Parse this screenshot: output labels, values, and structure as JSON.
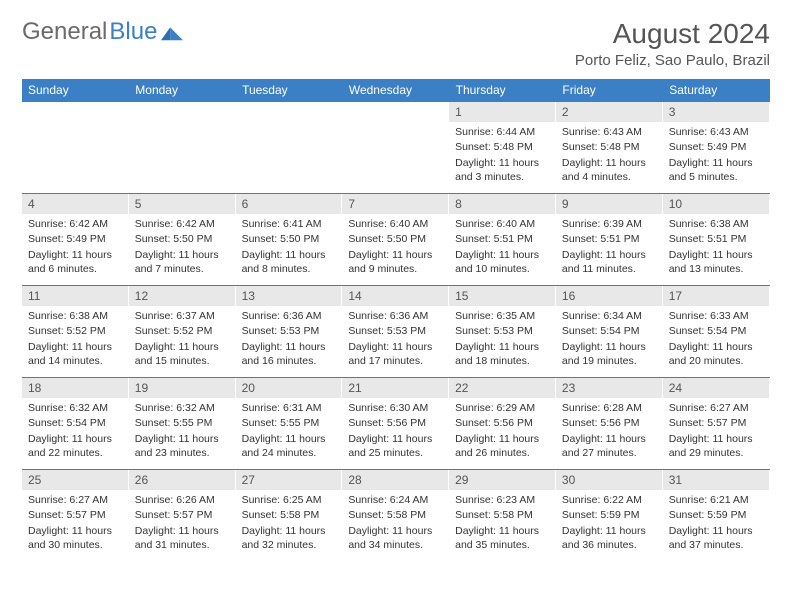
{
  "logo": {
    "text_gray": "General",
    "text_blue": "Blue"
  },
  "title": "August 2024",
  "location": "Porto Feliz, Sao Paulo, Brazil",
  "colors": {
    "header_bg": "#3b7fc4",
    "header_text": "#ffffff",
    "daynum_bg": "#e8e8e8",
    "border": "#3b7fc4",
    "body_text": "#333333",
    "logo_gray": "#6a6a6a"
  },
  "weekdays": [
    "Sunday",
    "Monday",
    "Tuesday",
    "Wednesday",
    "Thursday",
    "Friday",
    "Saturday"
  ],
  "weeks": [
    [
      null,
      null,
      null,
      null,
      {
        "n": "1",
        "sr": "6:44 AM",
        "ss": "5:48 PM",
        "dl": "11 hours and 3 minutes."
      },
      {
        "n": "2",
        "sr": "6:43 AM",
        "ss": "5:48 PM",
        "dl": "11 hours and 4 minutes."
      },
      {
        "n": "3",
        "sr": "6:43 AM",
        "ss": "5:49 PM",
        "dl": "11 hours and 5 minutes."
      }
    ],
    [
      {
        "n": "4",
        "sr": "6:42 AM",
        "ss": "5:49 PM",
        "dl": "11 hours and 6 minutes."
      },
      {
        "n": "5",
        "sr": "6:42 AM",
        "ss": "5:50 PM",
        "dl": "11 hours and 7 minutes."
      },
      {
        "n": "6",
        "sr": "6:41 AM",
        "ss": "5:50 PM",
        "dl": "11 hours and 8 minutes."
      },
      {
        "n": "7",
        "sr": "6:40 AM",
        "ss": "5:50 PM",
        "dl": "11 hours and 9 minutes."
      },
      {
        "n": "8",
        "sr": "6:40 AM",
        "ss": "5:51 PM",
        "dl": "11 hours and 10 minutes."
      },
      {
        "n": "9",
        "sr": "6:39 AM",
        "ss": "5:51 PM",
        "dl": "11 hours and 11 minutes."
      },
      {
        "n": "10",
        "sr": "6:38 AM",
        "ss": "5:51 PM",
        "dl": "11 hours and 13 minutes."
      }
    ],
    [
      {
        "n": "11",
        "sr": "6:38 AM",
        "ss": "5:52 PM",
        "dl": "11 hours and 14 minutes."
      },
      {
        "n": "12",
        "sr": "6:37 AM",
        "ss": "5:52 PM",
        "dl": "11 hours and 15 minutes."
      },
      {
        "n": "13",
        "sr": "6:36 AM",
        "ss": "5:53 PM",
        "dl": "11 hours and 16 minutes."
      },
      {
        "n": "14",
        "sr": "6:36 AM",
        "ss": "5:53 PM",
        "dl": "11 hours and 17 minutes."
      },
      {
        "n": "15",
        "sr": "6:35 AM",
        "ss": "5:53 PM",
        "dl": "11 hours and 18 minutes."
      },
      {
        "n": "16",
        "sr": "6:34 AM",
        "ss": "5:54 PM",
        "dl": "11 hours and 19 minutes."
      },
      {
        "n": "17",
        "sr": "6:33 AM",
        "ss": "5:54 PM",
        "dl": "11 hours and 20 minutes."
      }
    ],
    [
      {
        "n": "18",
        "sr": "6:32 AM",
        "ss": "5:54 PM",
        "dl": "11 hours and 22 minutes."
      },
      {
        "n": "19",
        "sr": "6:32 AM",
        "ss": "5:55 PM",
        "dl": "11 hours and 23 minutes."
      },
      {
        "n": "20",
        "sr": "6:31 AM",
        "ss": "5:55 PM",
        "dl": "11 hours and 24 minutes."
      },
      {
        "n": "21",
        "sr": "6:30 AM",
        "ss": "5:56 PM",
        "dl": "11 hours and 25 minutes."
      },
      {
        "n": "22",
        "sr": "6:29 AM",
        "ss": "5:56 PM",
        "dl": "11 hours and 26 minutes."
      },
      {
        "n": "23",
        "sr": "6:28 AM",
        "ss": "5:56 PM",
        "dl": "11 hours and 27 minutes."
      },
      {
        "n": "24",
        "sr": "6:27 AM",
        "ss": "5:57 PM",
        "dl": "11 hours and 29 minutes."
      }
    ],
    [
      {
        "n": "25",
        "sr": "6:27 AM",
        "ss": "5:57 PM",
        "dl": "11 hours and 30 minutes."
      },
      {
        "n": "26",
        "sr": "6:26 AM",
        "ss": "5:57 PM",
        "dl": "11 hours and 31 minutes."
      },
      {
        "n": "27",
        "sr": "6:25 AM",
        "ss": "5:58 PM",
        "dl": "11 hours and 32 minutes."
      },
      {
        "n": "28",
        "sr": "6:24 AM",
        "ss": "5:58 PM",
        "dl": "11 hours and 34 minutes."
      },
      {
        "n": "29",
        "sr": "6:23 AM",
        "ss": "5:58 PM",
        "dl": "11 hours and 35 minutes."
      },
      {
        "n": "30",
        "sr": "6:22 AM",
        "ss": "5:59 PM",
        "dl": "11 hours and 36 minutes."
      },
      {
        "n": "31",
        "sr": "6:21 AM",
        "ss": "5:59 PM",
        "dl": "11 hours and 37 minutes."
      }
    ]
  ],
  "labels": {
    "sunrise": "Sunrise: ",
    "sunset": "Sunset: ",
    "daylight": "Daylight: "
  }
}
